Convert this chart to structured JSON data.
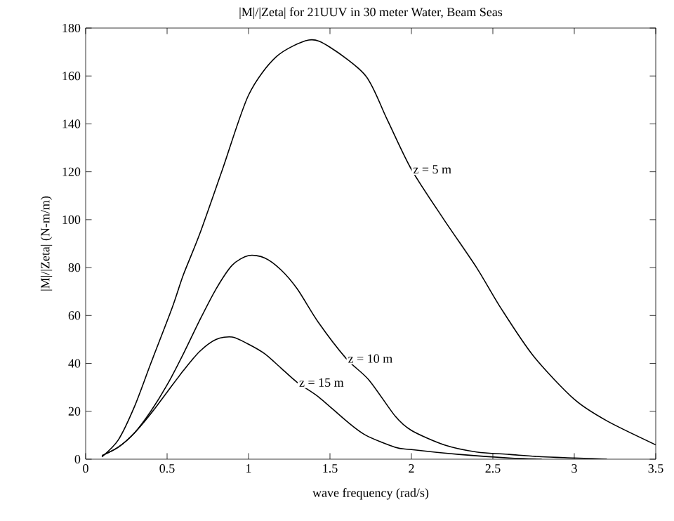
{
  "chart_data": {
    "type": "line",
    "title": "|M|/|Zeta| for 21UUV in 30 meter Water, Beam Seas",
    "xlabel": "wave frequency (rad/s)",
    "ylabel": "|M|/|Zeta| (N-m/m)",
    "xlim": [
      0,
      3.5
    ],
    "ylim": [
      0,
      180
    ],
    "xticks": [
      0,
      0.5,
      1,
      1.5,
      2,
      2.5,
      3,
      3.5
    ],
    "yticks": [
      0,
      20,
      40,
      60,
      80,
      100,
      120,
      140,
      160,
      180
    ],
    "grid": false,
    "legend": false,
    "marker": "none",
    "line_style": "solid",
    "series": [
      {
        "name": "z = 5 m",
        "color": "#000000",
        "x": [
          0.1,
          0.2,
          0.3,
          0.4,
          0.53,
          0.6,
          0.7,
          0.84,
          1.0,
          1.17,
          1.37,
          1.5,
          1.72,
          1.85,
          2.0,
          2.2,
          2.4,
          2.55,
          2.75,
          3.0,
          3.2,
          3.5
        ],
        "values": [
          1,
          8,
          22,
          40,
          63,
          77,
          94,
          121,
          152,
          168,
          175,
          172,
          160,
          142,
          121,
          100,
          80,
          63,
          43,
          25,
          16,
          6
        ]
      },
      {
        "name": "z = 10 m",
        "color": "#000000",
        "x": [
          0.1,
          0.2,
          0.3,
          0.4,
          0.5,
          0.6,
          0.7,
          0.8,
          0.9,
          1.0,
          1.1,
          1.2,
          1.3,
          1.43,
          1.6,
          1.74,
          1.9,
          2.0,
          2.2,
          2.4,
          2.6,
          2.8,
          3.0,
          3.2
        ],
        "values": [
          1.5,
          5,
          11,
          20,
          31,
          44,
          58,
          71,
          81,
          85,
          84,
          79,
          71,
          57,
          42,
          33,
          18,
          12,
          6,
          3,
          2,
          1,
          0.5,
          0
        ]
      },
      {
        "name": "z = 15 m",
        "color": "#000000",
        "x": [
          0.1,
          0.2,
          0.3,
          0.4,
          0.5,
          0.6,
          0.7,
          0.8,
          0.9,
          1.0,
          1.1,
          1.2,
          1.3,
          1.43,
          1.6,
          1.72,
          1.9,
          2.0,
          2.29,
          2.6,
          2.8
        ],
        "values": [
          1.5,
          5,
          11,
          19,
          28,
          37,
          45,
          50,
          51,
          48,
          44,
          38,
          32,
          26,
          16,
          10,
          5,
          4,
          2,
          0.5,
          0
        ]
      }
    ]
  }
}
